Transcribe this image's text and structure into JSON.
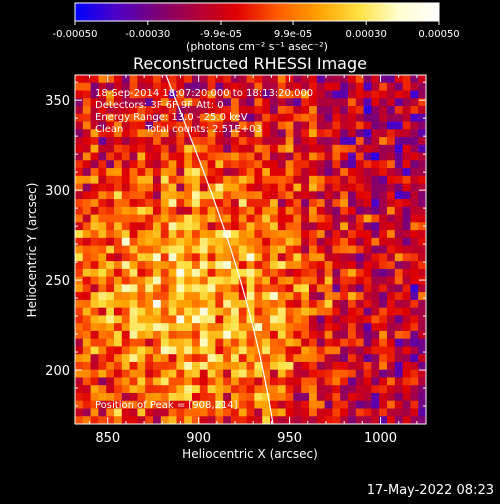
{
  "colorbar": {
    "tick_labels": [
      "-0.00050",
      "-0.00030",
      "-9.9e-05",
      "9.9e-05",
      "0.00030",
      "0.00050"
    ],
    "unit_label": "(photons cm⁻² s⁻¹ asec⁻²)",
    "range": [
      -0.0005,
      0.0005
    ],
    "colormap": [
      "#0000ff",
      "#4b00c8",
      "#7a0078",
      "#b0003a",
      "#e00000",
      "#ff5a00",
      "#ffa000",
      "#ffe040",
      "#ffffd0",
      "#ffffff"
    ]
  },
  "title": "Reconstructed RHESSI Image",
  "info_lines": [
    "18-Sep-2014 18:07:20.000 to 18:13:20.000",
    "Detectors: 3F 6F 9F  Att: 0",
    "Energy Range: 13.0 - 25.0 keV",
    "Clean       Total counts: 2.51E+03"
  ],
  "peak_text": "Position of Peak = [908,214]",
  "axes": {
    "xlabel": "Heliocentric X (arcsec)",
    "ylabel": "Heliocentric Y (arcsec)",
    "xlim": [
      832,
      1025
    ],
    "ylim": [
      170,
      364
    ],
    "xticks": [
      850,
      900,
      950,
      1000
    ],
    "yticks": [
      200,
      250,
      300,
      350
    ],
    "xtick_labels": [
      "850",
      "900",
      "950",
      "1000"
    ],
    "ytick_labels": [
      "200",
      "250",
      "300",
      "350"
    ]
  },
  "timestamp": "17-May-2022 08:23",
  "colors": {
    "background": "#000000",
    "text": "#ffffff",
    "limb": "#ffffff"
  }
}
